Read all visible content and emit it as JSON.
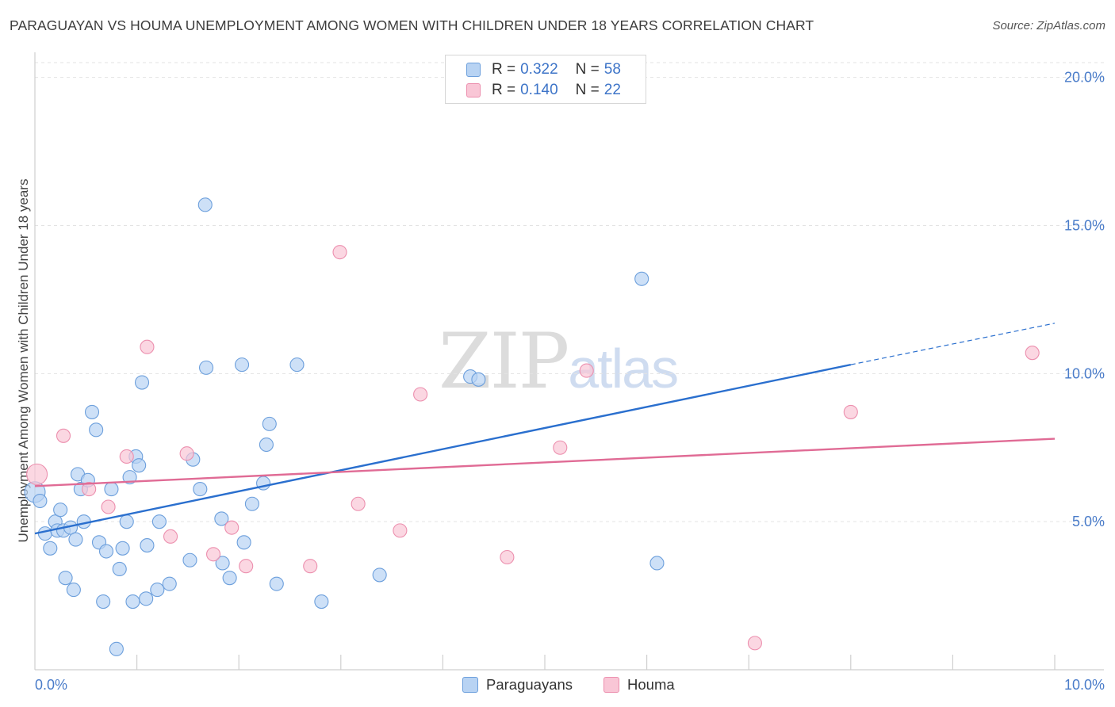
{
  "title": "PARAGUAYAN VS HOUMA UNEMPLOYMENT AMONG WOMEN WITH CHILDREN UNDER 18 YEARS CORRELATION CHART",
  "source": "Source: ZipAtlas.com",
  "watermark": {
    "zip": "ZIP",
    "atlas": "atlas"
  },
  "legend": {
    "rows": [
      {
        "r_key": "R = ",
        "r_val": "0.322",
        "n_key": "N = ",
        "n_val": "58"
      },
      {
        "r_key": "R = ",
        "r_val": "0.140",
        "n_key": "N = ",
        "n_val": "22"
      }
    ]
  },
  "bottom_legend": [
    "Paraguayans",
    "Houma"
  ],
  "colors": {
    "paraguayans_fill": "#b8d3f3",
    "paraguayans_stroke": "#6c9fdc",
    "paraguayans_line": "#2a6fce",
    "houma_fill": "#f9c6d6",
    "houma_stroke": "#ec8fae",
    "houma_line": "#e06b95",
    "tick_text": "#4a7cc9",
    "grid": "#e3e3e3"
  },
  "chart_data": {
    "type": "scatter",
    "title": "PARAGUAYAN VS HOUMA UNEMPLOYMENT AMONG WOMEN WITH CHILDREN UNDER 18 YEARS CORRELATION CHART",
    "xlabel": "",
    "ylabel": "Unemployment Among Women with Children Under 18 years",
    "xlim": [
      0,
      10
    ],
    "ylim": [
      0,
      20.5
    ],
    "x_tick_labels": [
      "0.0%",
      "10.0%"
    ],
    "y_ticks": [
      5,
      10,
      15,
      20
    ],
    "y_tick_labels": [
      "5.0%",
      "10.0%",
      "15.0%",
      "20.0%"
    ],
    "grid": true,
    "legend_position": "top-center",
    "series": [
      {
        "name": "Paraguayans",
        "R": 0.322,
        "N": 58,
        "trend": {
          "x0": 0.0,
          "y0": 4.6,
          "x1": 8.0,
          "y1": 10.3,
          "dashed_to_x": 10.0,
          "dashed_to_y": 11.7
        },
        "points": [
          [
            0.0,
            6.0
          ],
          [
            0.05,
            5.7
          ],
          [
            0.1,
            4.6
          ],
          [
            0.15,
            4.1
          ],
          [
            0.2,
            5.0
          ],
          [
            0.22,
            4.7
          ],
          [
            0.25,
            5.4
          ],
          [
            0.28,
            4.7
          ],
          [
            0.3,
            3.1
          ],
          [
            0.35,
            4.8
          ],
          [
            0.38,
            2.7
          ],
          [
            0.4,
            4.4
          ],
          [
            0.42,
            6.6
          ],
          [
            0.45,
            6.1
          ],
          [
            0.48,
            5.0
          ],
          [
            0.52,
            6.4
          ],
          [
            0.56,
            8.7
          ],
          [
            0.6,
            8.1
          ],
          [
            0.63,
            4.3
          ],
          [
            0.67,
            2.3
          ],
          [
            0.7,
            4.0
          ],
          [
            0.75,
            6.1
          ],
          [
            0.8,
            0.7
          ],
          [
            0.83,
            3.4
          ],
          [
            0.86,
            4.1
          ],
          [
            0.9,
            5.0
          ],
          [
            0.93,
            6.5
          ],
          [
            0.96,
            2.3
          ],
          [
            0.99,
            7.2
          ],
          [
            1.02,
            6.9
          ],
          [
            1.05,
            9.7
          ],
          [
            1.09,
            2.4
          ],
          [
            1.1,
            4.2
          ],
          [
            1.2,
            2.7
          ],
          [
            1.22,
            5.0
          ],
          [
            1.32,
            2.9
          ],
          [
            1.52,
            3.7
          ],
          [
            1.55,
            7.1
          ],
          [
            1.62,
            6.1
          ],
          [
            1.67,
            15.7
          ],
          [
            1.68,
            10.2
          ],
          [
            1.83,
            5.1
          ],
          [
            1.84,
            3.6
          ],
          [
            1.91,
            3.1
          ],
          [
            2.03,
            10.3
          ],
          [
            2.05,
            4.3
          ],
          [
            2.13,
            5.6
          ],
          [
            2.24,
            6.3
          ],
          [
            2.27,
            7.6
          ],
          [
            2.3,
            8.3
          ],
          [
            2.37,
            2.9
          ],
          [
            2.57,
            10.3
          ],
          [
            2.81,
            2.3
          ],
          [
            3.38,
            3.2
          ],
          [
            4.27,
            9.9
          ],
          [
            4.35,
            9.8
          ],
          [
            5.95,
            13.2
          ],
          [
            6.1,
            3.6
          ]
        ]
      },
      {
        "name": "Houma",
        "R": 0.14,
        "N": 22,
        "trend": {
          "x0": 0.0,
          "y0": 6.2,
          "x1": 10.0,
          "y1": 7.8
        },
        "points": [
          [
            0.02,
            6.6
          ],
          [
            0.28,
            7.9
          ],
          [
            0.53,
            6.1
          ],
          [
            0.72,
            5.5
          ],
          [
            0.9,
            7.2
          ],
          [
            1.1,
            10.9
          ],
          [
            1.33,
            4.5
          ],
          [
            1.49,
            7.3
          ],
          [
            1.75,
            3.9
          ],
          [
            1.93,
            4.8
          ],
          [
            2.07,
            3.5
          ],
          [
            2.7,
            3.5
          ],
          [
            2.99,
            14.1
          ],
          [
            3.17,
            5.6
          ],
          [
            3.58,
            4.7
          ],
          [
            3.78,
            9.3
          ],
          [
            4.63,
            3.8
          ],
          [
            5.15,
            7.5
          ],
          [
            5.41,
            10.1
          ],
          [
            7.06,
            0.9
          ],
          [
            8.0,
            8.7
          ],
          [
            9.78,
            10.7
          ]
        ]
      }
    ]
  }
}
